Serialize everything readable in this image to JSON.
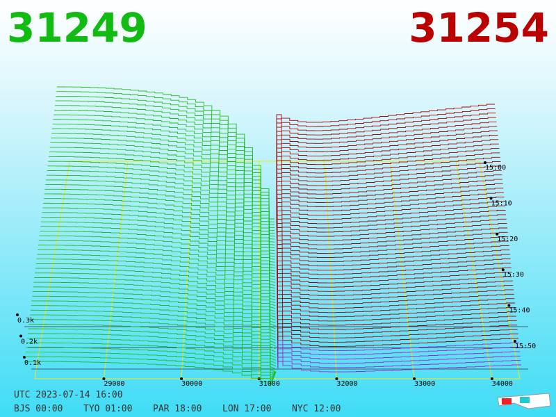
{
  "header": {
    "bid": "31249",
    "ask": "31254"
  },
  "price_axis": {
    "ticks": [
      29000,
      30000,
      31000,
      32000,
      33000,
      34000
    ],
    "lim": [
      28110,
      34360
    ]
  },
  "depth_axis": {
    "ticks": [
      {
        "value": 300,
        "label": "0.3k"
      },
      {
        "value": 200,
        "label": "0.2k"
      },
      {
        "value": 100,
        "label": "0.1k"
      }
    ]
  },
  "time_axis": {
    "ticks": [
      "15:00",
      "15:10",
      "15:20",
      "15:30",
      "15:40",
      "15:50"
    ]
  },
  "footer": {
    "utc": "UTC 2023-07-14 16:00",
    "cities": [
      "BJS 00:00",
      "TYO 01:00",
      "PAR 18:00",
      "LON 17:00",
      "NYC 12:00"
    ]
  }
}
